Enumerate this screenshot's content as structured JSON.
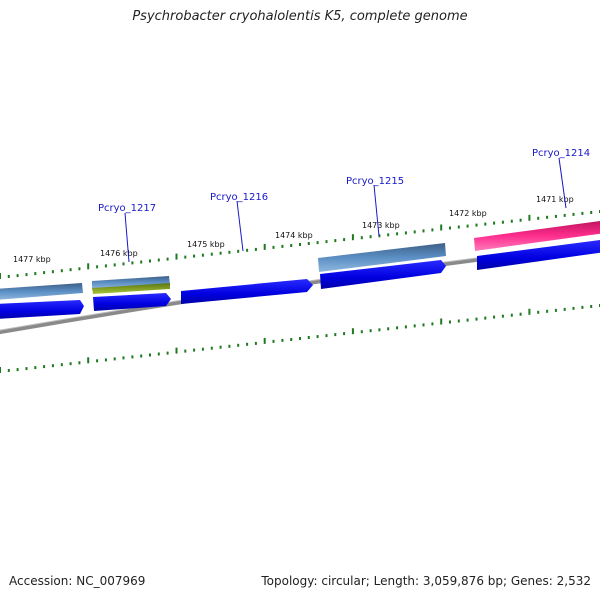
{
  "title": "Psychrobacter cryohalolentis K5, complete genome",
  "footer": {
    "accession": "Accession: NC_007969",
    "summary": "Topology: circular; Length: 3,059,876 bp; Genes: 2,532"
  },
  "kbp_labels": [
    "1477 kbp",
    "1476 kbp",
    "1475 kbp",
    "1474 kbp",
    "1473 kbp",
    "1472 kbp",
    "1471 kbp"
  ],
  "gene_labels": [
    "Pcryo_1217",
    "Pcryo_1216",
    "Pcryo_1215",
    "Pcryo_1214"
  ],
  "colors": {
    "cds": "#0000ee",
    "gene_feature": "#4a7fb5",
    "gene_pink": "#ff2a8a",
    "gene_olive": "#7a9a1c",
    "ticks": "#1f7a1f",
    "backbone": "#808080",
    "label": "#1818c8"
  }
}
